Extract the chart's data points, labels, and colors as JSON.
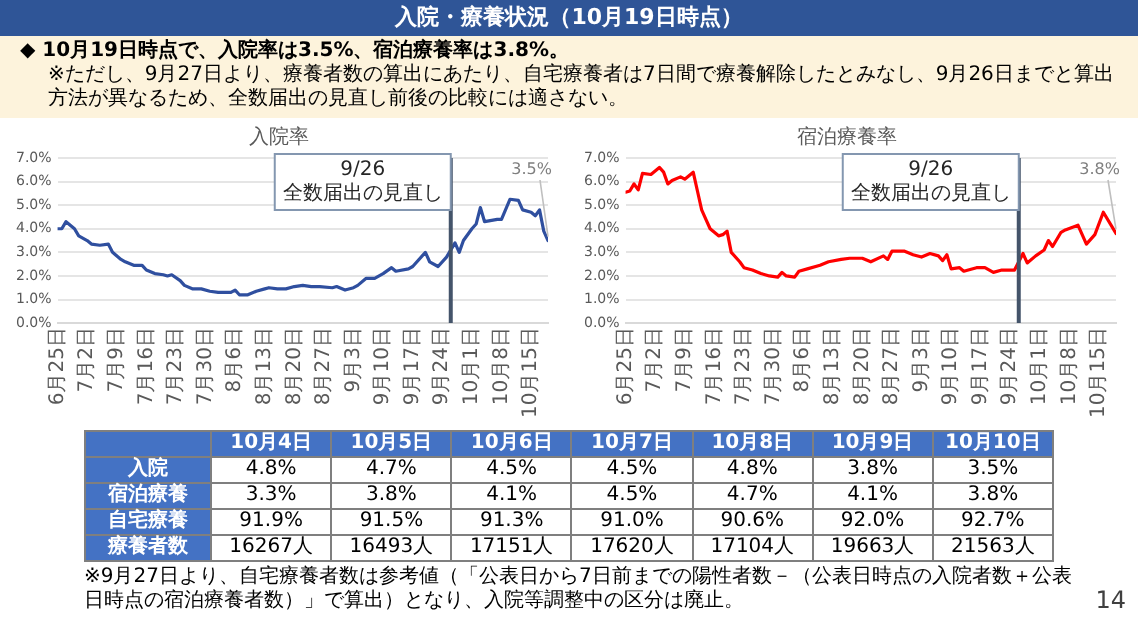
{
  "chart_data": [
    {
      "type": "other",
      "title": "入院・療養状況（10月19日時点）",
      "annotations": [
        "◆ 10月19日時点で、入院率は3.5%、宿泊療養率は3.8%。",
        "※ただし、9月27日より、療養者数の算出にあたり、自宅療養者は7日間で療養解除したとみなし、9月26日までと算出方法が異なるため、全数届出の見直し前後の比較には適さない。"
      ]
    },
    {
      "type": "line",
      "title": "入院率",
      "grid": "y",
      "x": [
        "--06-25",
        "--06-26",
        "--06-27",
        "--06-29",
        "--06-30",
        "--07-02",
        "--07-03",
        "--07-05",
        "--07-07",
        "--07-08",
        "--07-10",
        "--07-11",
        "--07-13",
        "--07-15",
        "--07-16",
        "--07-18",
        "--07-20",
        "--07-21",
        "--07-22",
        "--07-24",
        "--07-25",
        "--07-27",
        "--07-29",
        "--07-31",
        "--08-02",
        "--08-05",
        "--08-06",
        "--08-07",
        "--08-09",
        "--08-11",
        "--08-13",
        "--08-14",
        "--08-16",
        "--08-18",
        "--08-20",
        "--08-22",
        "--08-24",
        "--08-26",
        "--08-29",
        "--08-30",
        "--09-01",
        "--09-03",
        "--09-04",
        "--09-06",
        "--09-08",
        "--09-10",
        "--09-12",
        "--09-13",
        "--09-16",
        "--09-17",
        "--09-20",
        "--09-21",
        "--09-23",
        "--09-25",
        "--09-27",
        "--09-28",
        "--09-29",
        "--10-01",
        "--10-02",
        "--10-03",
        "--10-04",
        "--10-07",
        "--10-08",
        "--10-10",
        "--10-12",
        "--10-13",
        "--10-15",
        "--10-16",
        "--10-17",
        "--10-18",
        "--10-19"
      ],
      "series": [
        {
          "color": "#2f4f9f",
          "values": [
            4.0,
            4.0,
            4.3,
            4.0,
            3.7,
            3.5,
            3.35,
            3.3,
            3.35,
            3.0,
            2.7,
            2.6,
            2.45,
            2.45,
            2.25,
            2.1,
            2.05,
            2.0,
            2.05,
            1.8,
            1.6,
            1.45,
            1.45,
            1.35,
            1.3,
            1.3,
            1.4,
            1.2,
            1.2,
            1.35,
            1.45,
            1.5,
            1.45,
            1.45,
            1.55,
            1.6,
            1.55,
            1.55,
            1.5,
            1.55,
            1.4,
            1.5,
            1.6,
            1.9,
            1.9,
            2.1,
            2.35,
            2.2,
            2.3,
            2.4,
            3.0,
            2.6,
            2.4,
            2.8,
            3.4,
            3.0,
            3.5,
            4.0,
            4.2,
            4.9,
            4.3,
            4.4,
            4.4,
            5.25,
            5.2,
            4.8,
            4.7,
            4.55,
            4.8,
            3.9,
            3.5
          ]
        }
      ],
      "xlim": [
        "--06-25",
        "--10-19"
      ],
      "xticks": [
        {
          "value": "--06-25",
          "label": "6月25日"
        },
        {
          "value": "--07-02",
          "label": "7月2日"
        },
        {
          "value": "--07-09",
          "label": "7月9日"
        },
        {
          "value": "--07-16",
          "label": "7月16日"
        },
        {
          "value": "--07-23",
          "label": "7月23日"
        },
        {
          "value": "--07-30",
          "label": "7月30日"
        },
        {
          "value": "--08-06",
          "label": "8月6日"
        },
        {
          "value": "--08-13",
          "label": "8月13日"
        },
        {
          "value": "--08-20",
          "label": "8月20日"
        },
        {
          "value": "--08-27",
          "label": "8月27日"
        },
        {
          "value": "--09-03",
          "label": "9月3日"
        },
        {
          "value": "--09-10",
          "label": "9月10日"
        },
        {
          "value": "--09-17",
          "label": "9月17日"
        },
        {
          "value": "--09-24",
          "label": "9月24日"
        },
        {
          "value": "--10-01",
          "label": "10月1日"
        },
        {
          "value": "--10-08",
          "label": "10月8日"
        },
        {
          "value": "--10-15",
          "label": "10月15日"
        }
      ],
      "ylim": [
        0,
        7
      ],
      "yticks": [
        {
          "value": 0,
          "label": "0.0%"
        },
        {
          "value": 1,
          "label": "1.0%"
        },
        {
          "value": 2,
          "label": "2.0%"
        },
        {
          "value": 3,
          "label": "3.0%"
        },
        {
          "value": 4,
          "label": "4.0%"
        },
        {
          "value": 5,
          "label": "5.0%"
        },
        {
          "value": 6,
          "label": "6.0%"
        },
        {
          "value": 7,
          "label": "7.0%"
        }
      ],
      "ref_lines": [
        {
          "axis": "x",
          "value": "--09-26",
          "label": "9/26\n全数届出の見直し",
          "color": "#44546a"
        }
      ],
      "annotations": [
        {
          "text": "3.5%",
          "x": "--10-19",
          "y": 3.5
        }
      ]
    },
    {
      "type": "line",
      "title": "宿泊療養率",
      "grid": "y",
      "x": [
        "--06-25",
        "--06-26",
        "--06-27",
        "--06-28",
        "--06-29",
        "--07-01",
        "--07-03",
        "--07-04",
        "--07-05",
        "--07-06",
        "--07-08",
        "--07-09",
        "--07-11",
        "--07-12",
        "--07-13",
        "--07-14",
        "--07-15",
        "--07-17",
        "--07-18",
        "--07-19",
        "--07-20",
        "--07-22",
        "--07-23",
        "--07-25",
        "--07-27",
        "--07-29",
        "--07-31",
        "--08-01",
        "--08-02",
        "--08-04",
        "--08-05",
        "--08-07",
        "--08-10",
        "--08-12",
        "--08-15",
        "--08-17",
        "--08-20",
        "--08-22",
        "--08-25",
        "--08-26",
        "--08-27",
        "--08-30",
        "--09-01",
        "--09-03",
        "--09-05",
        "--09-07",
        "--09-08",
        "--09-09",
        "--09-10",
        "--09-12",
        "--09-13",
        "--09-16",
        "--09-18",
        "--09-20",
        "--09-22",
        "--09-25",
        "--09-27",
        "--09-28",
        "--09-30",
        "--10-02",
        "--10-03",
        "--10-04",
        "--10-06",
        "--10-07",
        "--10-10",
        "--10-12",
        "--10-14",
        "--10-16",
        "--10-19"
      ],
      "series": [
        {
          "color": "#ff0000",
          "values": [
            5.55,
            5.6,
            5.9,
            5.65,
            6.35,
            6.3,
            6.6,
            6.4,
            5.9,
            6.05,
            6.2,
            6.1,
            6.4,
            5.6,
            4.8,
            4.4,
            4.0,
            3.7,
            3.75,
            3.9,
            3.0,
            2.6,
            2.35,
            2.25,
            2.1,
            2.0,
            1.95,
            2.15,
            2.0,
            1.95,
            2.2,
            2.3,
            2.45,
            2.6,
            2.7,
            2.75,
            2.75,
            2.6,
            2.85,
            2.7,
            3.05,
            3.05,
            2.9,
            2.8,
            2.95,
            2.85,
            2.65,
            2.9,
            2.3,
            2.35,
            2.2,
            2.35,
            2.35,
            2.15,
            2.25,
            2.25,
            2.95,
            2.55,
            2.85,
            3.1,
            3.5,
            3.25,
            3.85,
            3.95,
            4.15,
            3.35,
            3.75,
            4.7,
            3.8
          ]
        }
      ],
      "xlim": [
        "--06-25",
        "--10-19"
      ],
      "xticks": [
        {
          "value": "--06-25",
          "label": "6月25日"
        },
        {
          "value": "--07-02",
          "label": "7月2日"
        },
        {
          "value": "--07-09",
          "label": "7月9日"
        },
        {
          "value": "--07-16",
          "label": "7月16日"
        },
        {
          "value": "--07-23",
          "label": "7月23日"
        },
        {
          "value": "--07-30",
          "label": "7月30日"
        },
        {
          "value": "--08-06",
          "label": "8月6日"
        },
        {
          "value": "--08-13",
          "label": "8月13日"
        },
        {
          "value": "--08-20",
          "label": "8月20日"
        },
        {
          "value": "--08-27",
          "label": "8月27日"
        },
        {
          "value": "--09-03",
          "label": "9月3日"
        },
        {
          "value": "--09-10",
          "label": "9月10日"
        },
        {
          "value": "--09-17",
          "label": "9月17日"
        },
        {
          "value": "--09-24",
          "label": "9月24日"
        },
        {
          "value": "--10-01",
          "label": "10月1日"
        },
        {
          "value": "--10-08",
          "label": "10月8日"
        },
        {
          "value": "--10-15",
          "label": "10月15日"
        }
      ],
      "ylim": [
        0,
        7
      ],
      "yticks": [
        {
          "value": 0,
          "label": "0.0%"
        },
        {
          "value": 1,
          "label": "1.0%"
        },
        {
          "value": 2,
          "label": "2.0%"
        },
        {
          "value": 3,
          "label": "3.0%"
        },
        {
          "value": 4,
          "label": "4.0%"
        },
        {
          "value": 5,
          "label": "5.0%"
        },
        {
          "value": 6,
          "label": "6.0%"
        },
        {
          "value": 7,
          "label": "7.0%"
        }
      ],
      "ref_lines": [
        {
          "axis": "x",
          "value": "--09-26",
          "label": "9/26\n全数届出の見直し",
          "color": "#44546a"
        }
      ],
      "annotations": [
        {
          "text": "3.8%",
          "x": "--10-19",
          "y": 3.8
        }
      ]
    },
    {
      "type": "other",
      "categories": [
        "10月4日",
        "10月5日",
        "10月6日",
        "10月7日",
        "10月8日",
        "10月9日",
        "10月10日"
      ],
      "y_categories": [
        "入院",
        "宿泊療養",
        "自宅療養",
        "療養者数"
      ],
      "cell_labels": [
        [
          "4.8%",
          "4.7%",
          "4.5%",
          "4.5%",
          "4.8%",
          "3.8%",
          "3.5%"
        ],
        [
          "3.3%",
          "3.8%",
          "4.1%",
          "4.5%",
          "4.7%",
          "4.1%",
          "3.8%"
        ],
        [
          "91.9%",
          "91.5%",
          "91.3%",
          "91.0%",
          "90.6%",
          "92.0%",
          "92.7%"
        ],
        [
          "16267人",
          "16493人",
          "17151人",
          "17620人",
          "17104人",
          "19663人",
          "21563人"
        ]
      ],
      "annotations": [
        "※9月27日より、自宅療養者数は参考値（「公表日から7日前までの陽性者数－（公表日時点の入院者数＋公表日時点の宿泊療養者数）」で算出）となり、入院等調整中の区分は廃止。",
        "14"
      ]
    }
  ]
}
